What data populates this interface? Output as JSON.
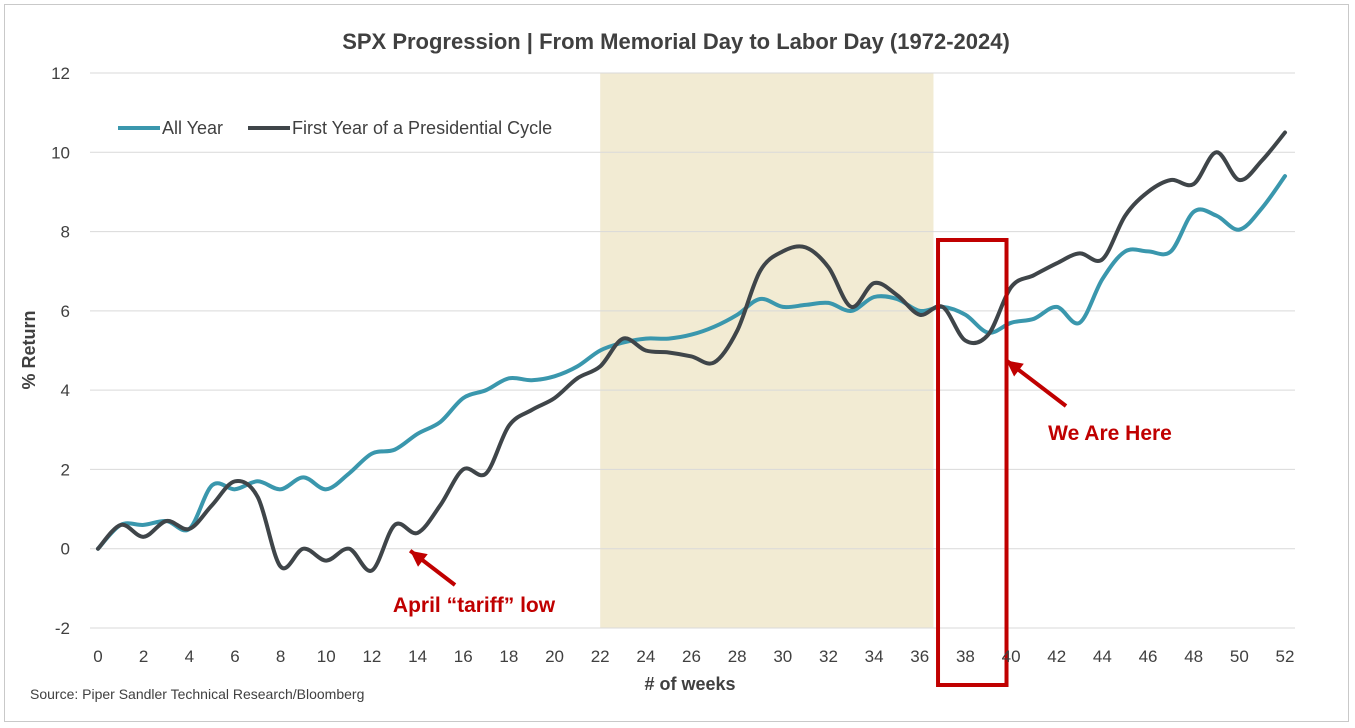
{
  "chart_data": {
    "type": "line",
    "title": "SPX Progression | From Memorial Day to Labor Day (1972-2024)",
    "xlabel": "# of weeks",
    "ylabel": "% Return",
    "xlim": [
      0,
      52
    ],
    "ylim": [
      -2,
      12
    ],
    "yticks": [
      -2,
      0,
      2,
      4,
      6,
      8,
      10,
      12
    ],
    "xticks": [
      0,
      2,
      4,
      6,
      8,
      10,
      12,
      14,
      16,
      18,
      20,
      22,
      24,
      26,
      28,
      30,
      32,
      34,
      36,
      38,
      40,
      42,
      44,
      46,
      48,
      50,
      52
    ],
    "grid": true,
    "legend_position": "top-left",
    "shaded_region": {
      "x_start": 22,
      "x_end": 36.6,
      "color": "#f2ebd3"
    },
    "series": [
      {
        "name": "All Year",
        "color": "#3a97ad",
        "x": [
          0,
          1,
          2,
          3,
          4,
          5,
          6,
          7,
          8,
          9,
          10,
          11,
          12,
          13,
          14,
          15,
          16,
          17,
          18,
          19,
          20,
          21,
          22,
          23,
          24,
          25,
          26,
          27,
          28,
          29,
          30,
          31,
          32,
          33,
          34,
          35,
          36,
          37,
          38,
          39,
          40,
          41,
          42,
          43,
          44,
          45,
          46,
          47,
          48,
          49,
          50,
          51,
          52
        ],
        "values": [
          0,
          0.6,
          0.6,
          0.7,
          0.5,
          1.6,
          1.5,
          1.7,
          1.5,
          1.8,
          1.5,
          1.9,
          2.4,
          2.5,
          2.9,
          3.2,
          3.8,
          4.0,
          4.3,
          4.25,
          4.35,
          4.6,
          5.0,
          5.2,
          5.3,
          5.3,
          5.4,
          5.6,
          5.9,
          6.3,
          6.1,
          6.15,
          6.2,
          6.0,
          6.35,
          6.3,
          6.0,
          6.1,
          5.9,
          5.45,
          5.7,
          5.8,
          6.1,
          5.7,
          6.8,
          7.5,
          7.5,
          7.5,
          8.5,
          8.4,
          8.05,
          8.6,
          9.4
        ]
      },
      {
        "name": "First Year of a Presidential Cycle",
        "color": "#3f4549",
        "x": [
          0,
          1,
          2,
          3,
          4,
          5,
          6,
          7,
          8,
          9,
          10,
          11,
          12,
          13,
          14,
          15,
          16,
          17,
          18,
          19,
          20,
          21,
          22,
          23,
          24,
          25,
          26,
          27,
          28,
          29,
          30,
          31,
          32,
          33,
          34,
          35,
          36,
          37,
          38,
          39,
          40,
          41,
          42,
          43,
          44,
          45,
          46,
          47,
          48,
          49,
          50,
          51,
          52
        ],
        "values": [
          0,
          0.6,
          0.3,
          0.7,
          0.5,
          1.1,
          1.7,
          1.3,
          -0.45,
          0,
          -0.3,
          0,
          -0.55,
          0.6,
          0.4,
          1.1,
          2.0,
          1.9,
          3.1,
          3.5,
          3.8,
          4.3,
          4.6,
          5.3,
          5.0,
          4.95,
          4.85,
          4.7,
          5.5,
          7.0,
          7.5,
          7.6,
          7.1,
          6.1,
          6.7,
          6.4,
          5.9,
          6.1,
          5.25,
          5.4,
          6.6,
          6.9,
          7.2,
          7.45,
          7.3,
          8.4,
          9.0,
          9.3,
          9.2,
          10.0,
          9.3,
          9.8,
          10.5
        ]
      }
    ],
    "annotations": [
      {
        "text": "April “tariff” low",
        "color": "#c00000",
        "points_to": {
          "x": 13.5,
          "y": 0
        }
      },
      {
        "text": "We Are Here",
        "color": "#c00000",
        "points_to": {
          "x": 39.7,
          "y": 4.7
        }
      }
    ],
    "highlight_box": {
      "x_start": 36.8,
      "x_end": 39.8,
      "color": "#c00000"
    }
  },
  "source": "Source: Piper Sandler Technical Research/Bloomberg"
}
